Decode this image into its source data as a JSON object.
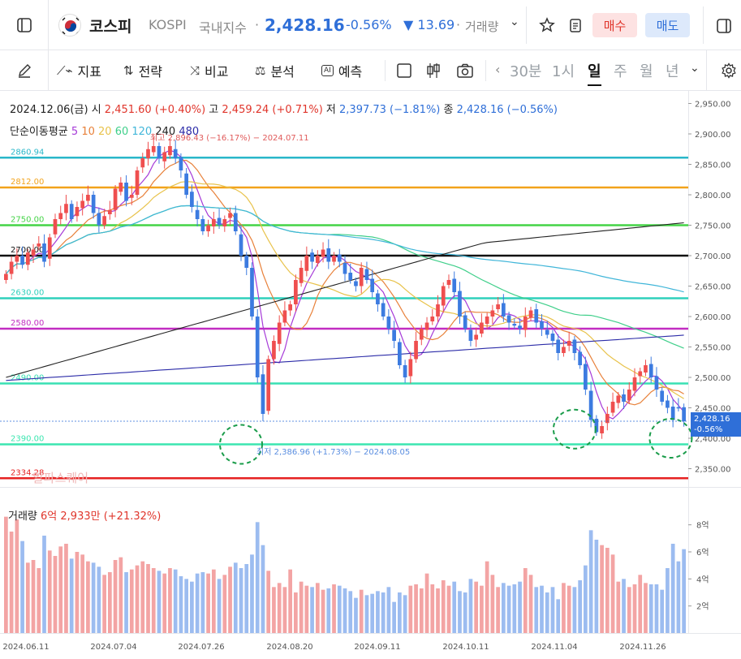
{
  "header": {
    "name": "코스피",
    "code": "KOSPI",
    "category": "국내지수",
    "price": "2,428.16",
    "change_pct": "-0.56%",
    "change_amt": "▼ 13.69",
    "volume_label": "거래량",
    "buy_label": "매수",
    "sell_label": "매도"
  },
  "toolbar": {
    "indicator": "지표",
    "strategy": "전략",
    "compare": "비교",
    "analysis": "분석",
    "predict": "예측",
    "timeframes": [
      "30분",
      "1시",
      "일",
      "주",
      "월",
      "년"
    ],
    "active_timeframe": "일"
  },
  "info": {
    "date": "2024.12.06(금)",
    "open_label": "시",
    "open": "2,451.60 (+0.40%)",
    "high_label": "고",
    "high": "2,459.24 (+0.71%)",
    "low_label": "저",
    "low": "2,397.73 (−1.81%)",
    "close_label": "종",
    "close": "2,428.16 (−0.56%)",
    "ma_label": "단순이동평균",
    "ma_periods": [
      "5",
      "10",
      "20",
      "60",
      "120",
      "240",
      "480"
    ]
  },
  "annotations": {
    "high_note": "최고 2,896.43 (−16.17%) − 2024.07.11",
    "low_note": "최저 2,386.96 (+1.73%) − 2024.08.05",
    "watermark": "알파스퀘어",
    "price_tag": "2,428.16",
    "price_tag_pct": "-0.56%"
  },
  "volume": {
    "label": "거래량",
    "value": "6억 2,933만 (+21.32%)"
  },
  "colors": {
    "up": "#ef4f4f",
    "down": "#3c7be0",
    "vol_up": "#f3a4a4",
    "vol_down": "#9cbcf0",
    "ma5": "#a63bd8",
    "ma10": "#e8813a",
    "ma20": "#e8c24a",
    "ma60": "#3fcf8a",
    "ma120": "#41b6d9",
    "ma240": "#222222",
    "ma480": "#2c2ca8"
  },
  "chart_data": {
    "type": "candlestick",
    "y_axis_ticks": [
      "2,950.00",
      "2,900.00",
      "2,850.00",
      "2,800.00",
      "2,750.00",
      "2,700.00",
      "2,650.00",
      "2,600.00",
      "2,550.00",
      "2,500.00",
      "2,450.00",
      "2,400.00",
      "2,350.00"
    ],
    "ylim": [
      2320,
      2960
    ],
    "x_tick_labels": [
      "2024.06.11",
      "2024.07.04",
      "2024.07.26",
      "2024.08.20",
      "2024.09.11",
      "2024.10.11",
      "2024.11.04",
      "2024.11.26"
    ],
    "volume_ticks": [
      "8억",
      "6억",
      "4억",
      "2억"
    ],
    "horizontal_lines": [
      {
        "value": 2860.94,
        "label": "2860.94",
        "color": "#29b7c9"
      },
      {
        "value": 2812.0,
        "label": "2812.00",
        "color": "#f2a31b"
      },
      {
        "value": 2750.0,
        "label": "2750.00",
        "color": "#45d447"
      },
      {
        "value": 2700.0,
        "label": "2700.00",
        "color": "#111111"
      },
      {
        "value": 2630.0,
        "label": "2630.00",
        "color": "#2fd0bc"
      },
      {
        "value": 2580.0,
        "label": "2580.00",
        "color": "#c22dc2"
      },
      {
        "value": 2490.0,
        "label": "2490.00",
        "color": "#39e0b4"
      },
      {
        "value": 2390.0,
        "label": "2390.00",
        "color": "#3ce6b0"
      },
      {
        "value": 2334.28,
        "label": "2334.28",
        "color": "#e62222"
      }
    ],
    "closes": [
      2670,
      2690,
      2700,
      2685,
      2705,
      2710,
      2720,
      2690,
      2730,
      2760,
      2770,
      2785,
      2760,
      2780,
      2790,
      2800,
      2770,
      2750,
      2765,
      2775,
      2810,
      2820,
      2790,
      2800,
      2840,
      2860,
      2875,
      2880,
      2860,
      2870,
      2880,
      2860,
      2840,
      2800,
      2780,
      2760,
      2740,
      2750,
      2760,
      2750,
      2760,
      2770,
      2740,
      2700,
      2680,
      2600,
      2500,
      2440,
      2530,
      2560,
      2590,
      2610,
      2620,
      2660,
      2680,
      2700,
      2690,
      2700,
      2710,
      2690,
      2700,
      2690,
      2670,
      2660,
      2650,
      2680,
      2660,
      2640,
      2620,
      2600,
      2580,
      2560,
      2520,
      2500,
      2530,
      2560,
      2580,
      2590,
      2600,
      2620,
      2650,
      2660,
      2640,
      2600,
      2580,
      2560,
      2570,
      2590,
      2600,
      2610,
      2620,
      2600,
      2590,
      2585,
      2580,
      2600,
      2610,
      2590,
      2580,
      2570,
      2560,
      2540,
      2550,
      2560,
      2540,
      2520,
      2480,
      2430,
      2410,
      2420,
      2440,
      2460,
      2470,
      2460,
      2480,
      2500,
      2510,
      2520,
      2500,
      2480,
      2460,
      2450,
      2430,
      2450,
      2428
    ],
    "opens": [
      2660,
      2670,
      2690,
      2700,
      2685,
      2700,
      2715,
      2720,
      2695,
      2735,
      2760,
      2770,
      2785,
      2765,
      2778,
      2790,
      2800,
      2770,
      2750,
      2768,
      2775,
      2805,
      2820,
      2795,
      2800,
      2845,
      2860,
      2870,
      2880,
      2855,
      2865,
      2875,
      2862,
      2835,
      2805,
      2775,
      2760,
      2740,
      2748,
      2762,
      2748,
      2762,
      2770,
      2735,
      2700,
      2680,
      2600,
      2505,
      2445,
      2530,
      2555,
      2590,
      2610,
      2620,
      2655,
      2675,
      2705,
      2688,
      2698,
      2712,
      2690,
      2702,
      2688,
      2672,
      2658,
      2650,
      2678,
      2662,
      2638,
      2622,
      2600,
      2578,
      2558,
      2520,
      2502,
      2530,
      2562,
      2578,
      2592,
      2600,
      2618,
      2652,
      2662,
      2642,
      2602,
      2578,
      2562,
      2572,
      2588,
      2600,
      2612,
      2622,
      2602,
      2588,
      2585,
      2578,
      2598,
      2612,
      2592,
      2578,
      2572,
      2562,
      2540,
      2552,
      2562,
      2542,
      2522,
      2478,
      2432,
      2408,
      2425,
      2442,
      2458,
      2472,
      2462,
      2478,
      2502,
      2508,
      2522,
      2502,
      2478,
      2462,
      2452,
      2451,
      2451
    ],
    "volumes": [
      8.6,
      7.5,
      8.4,
      6.8,
      5.2,
      5.4,
      4.8,
      7.2,
      6.1,
      5.7,
      6.4,
      6.6,
      5.5,
      6.0,
      5.8,
      5.3,
      5.2,
      4.9,
      4.3,
      4.5,
      5.4,
      5.6,
      4.5,
      4.7,
      5.0,
      5.3,
      5.1,
      4.8,
      4.6,
      4.4,
      4.8,
      4.7,
      4.2,
      4.0,
      3.8,
      4.4,
      4.5,
      4.4,
      4.7,
      4.0,
      4.3,
      4.9,
      5.2,
      4.8,
      5.1,
      5.8,
      8.2,
      6.5,
      4.6,
      3.4,
      3.7,
      3.4,
      4.7,
      3.0,
      3.8,
      3.5,
      3.4,
      3.7,
      3.2,
      3.3,
      3.6,
      3.5,
      3.3,
      3.1,
      2.6,
      3.2,
      2.8,
      2.9,
      3.1,
      3.0,
      3.4,
      2.3,
      3.0,
      2.8,
      3.5,
      3.6,
      3.3,
      4.4,
      3.6,
      3.3,
      3.9,
      3.5,
      3.8,
      3.1,
      3.0,
      4.0,
      3.8,
      3.5,
      5.3,
      4.3,
      3.4,
      3.7,
      3.5,
      3.6,
      3.8,
      4.8,
      4.3,
      3.4,
      3.5,
      3.0,
      3.4,
      2.5,
      3.7,
      3.5,
      3.4,
      3.9,
      5.0,
      7.6,
      6.9,
      6.5,
      6.3,
      5.8,
      3.8,
      4.0,
      3.4,
      3.6,
      4.3,
      3.7,
      3.6,
      3.6,
      3.2,
      4.8,
      6.6,
      5.3,
      6.2
    ]
  }
}
